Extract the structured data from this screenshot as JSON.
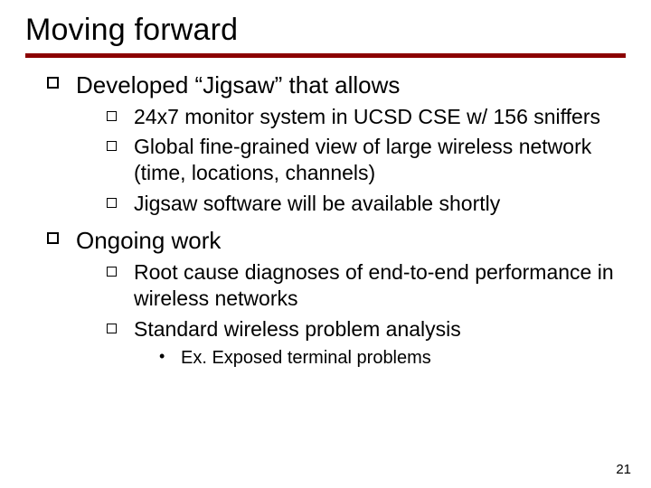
{
  "colors": {
    "background": "#ffffff",
    "text": "#000000",
    "rule": "#8b0000"
  },
  "typography": {
    "family": "Verdana",
    "title_size_pt": 34,
    "lvl1_size_pt": 26,
    "lvl2_size_pt": 23,
    "lvl3_size_pt": 20,
    "pagenum_size_pt": 15
  },
  "bullets": {
    "lvl1": "hollow-square",
    "lvl2": "hollow-square-small",
    "lvl3": "dot"
  },
  "title": "Moving forward",
  "items": [
    {
      "text": "Developed “Jigsaw” that allows",
      "children": [
        {
          "text": "24x7 monitor system in UCSD CSE w/ 156 sniffers"
        },
        {
          "text": "Global fine-grained view of large wireless network (time, locations, channels)"
        },
        {
          "text": "Jigsaw software will be available shortly"
        }
      ]
    },
    {
      "text": "Ongoing work",
      "children": [
        {
          "text": "Root cause diagnoses of end-to-end performance in wireless networks"
        },
        {
          "text": "Standard wireless problem analysis",
          "children": [
            {
              "text": "Ex. Exposed terminal problems"
            }
          ]
        }
      ]
    }
  ],
  "page_number": "21"
}
